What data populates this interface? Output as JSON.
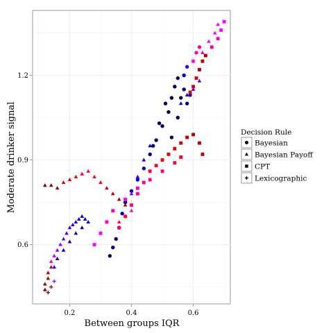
{
  "chart_data": {
    "type": "scatter",
    "title": "",
    "xlabel": "Between groups IQR",
    "ylabel": "Moderate drinker signal",
    "xlim": [
      0.08,
      0.72
    ],
    "ylim": [
      0.39,
      1.43
    ],
    "x_ticks": [
      0.2,
      0.4,
      0.6
    ],
    "x_tick_labels": [
      "0.2",
      "0.4",
      "0.6"
    ],
    "y_ticks": [
      0.6,
      0.9,
      1.2
    ],
    "y_tick_labels": [
      "0.6",
      "0.9",
      "1.2"
    ],
    "grid": true,
    "legend": {
      "title": "Decision Rule",
      "position": "right",
      "entries": [
        {
          "label": "Bayesian",
          "shape": "circle"
        },
        {
          "label": "Bayesian Payoff",
          "shape": "triangle"
        },
        {
          "label": "CPT",
          "shape": "square"
        },
        {
          "label": "Lexicographic",
          "shape": "plus"
        }
      ]
    },
    "color_scale": [
      "#000033",
      "#0000ff",
      "#ff00ff",
      "#ff0000",
      "#550000"
    ],
    "series": [
      {
        "name": "Bayesian",
        "shape": "circle",
        "points": [
          [
            0.33,
            0.56,
            0.05
          ],
          [
            0.34,
            0.59,
            0.1
          ],
          [
            0.35,
            0.62,
            0.08
          ],
          [
            0.36,
            0.66,
            0.12
          ],
          [
            0.37,
            0.71,
            0.15
          ],
          [
            0.38,
            0.75,
            0.18
          ],
          [
            0.4,
            0.79,
            0.2
          ],
          [
            0.42,
            0.83,
            0.22
          ],
          [
            0.44,
            0.87,
            0.18
          ],
          [
            0.46,
            0.92,
            0.1
          ],
          [
            0.48,
            0.97,
            0.08
          ],
          [
            0.5,
            1.02,
            0.06
          ],
          [
            0.52,
            1.07,
            0.05
          ],
          [
            0.53,
            1.12,
            0.04
          ],
          [
            0.54,
            1.16,
            0.05
          ],
          [
            0.55,
            1.19,
            0.06
          ],
          [
            0.56,
            1.12,
            0.08
          ],
          [
            0.57,
            1.15,
            0.1
          ],
          [
            0.55,
            1.05,
            0.06
          ],
          [
            0.53,
            0.98,
            0.05
          ],
          [
            0.58,
            1.1,
            0.12
          ],
          [
            0.59,
            1.13,
            0.15
          ],
          [
            0.57,
            1.2,
            0.25
          ],
          [
            0.58,
            1.23,
            0.3
          ],
          [
            0.6,
            1.25,
            0.5
          ],
          [
            0.61,
            1.28,
            0.55
          ],
          [
            0.62,
            1.3,
            0.6
          ],
          [
            0.49,
            1.03,
            0.07
          ],
          [
            0.51,
            1.1,
            0.05
          ],
          [
            0.47,
            0.95,
            0.09
          ]
        ]
      },
      {
        "name": "Bayesian Payoff",
        "shape": "triangle",
        "points": [
          [
            0.12,
            0.44,
            0.92
          ],
          [
            0.12,
            0.46,
            0.9
          ],
          [
            0.13,
            0.48,
            0.88
          ],
          [
            0.13,
            0.5,
            0.85
          ],
          [
            0.14,
            0.52,
            0.8
          ],
          [
            0.14,
            0.54,
            0.6
          ],
          [
            0.15,
            0.56,
            0.45
          ],
          [
            0.16,
            0.58,
            0.4
          ],
          [
            0.17,
            0.6,
            0.38
          ],
          [
            0.18,
            0.62,
            0.35
          ],
          [
            0.19,
            0.64,
            0.32
          ],
          [
            0.2,
            0.66,
            0.3
          ],
          [
            0.21,
            0.67,
            0.28
          ],
          [
            0.22,
            0.68,
            0.26
          ],
          [
            0.23,
            0.69,
            0.24
          ],
          [
            0.24,
            0.7,
            0.22
          ],
          [
            0.25,
            0.69,
            0.2
          ],
          [
            0.26,
            0.68,
            0.18
          ],
          [
            0.15,
            0.52,
            0.3
          ],
          [
            0.16,
            0.55,
            0.25
          ],
          [
            0.18,
            0.58,
            0.2
          ],
          [
            0.2,
            0.61,
            0.18
          ],
          [
            0.22,
            0.64,
            0.15
          ],
          [
            0.24,
            0.66,
            0.12
          ],
          [
            0.12,
            0.81,
            0.95
          ],
          [
            0.14,
            0.81,
            0.92
          ],
          [
            0.16,
            0.8,
            0.88
          ],
          [
            0.18,
            0.82,
            0.82
          ],
          [
            0.2,
            0.83,
            0.78
          ],
          [
            0.22,
            0.84,
            0.75
          ],
          [
            0.24,
            0.85,
            0.72
          ],
          [
            0.26,
            0.86,
            0.7
          ],
          [
            0.28,
            0.84,
            0.72
          ],
          [
            0.3,
            0.82,
            0.76
          ],
          [
            0.32,
            0.8,
            0.8
          ],
          [
            0.34,
            0.78,
            0.85
          ],
          [
            0.36,
            0.76,
            0.88
          ],
          [
            0.38,
            0.74,
            0.9
          ],
          [
            0.4,
            0.78,
            0.35
          ],
          [
            0.42,
            0.84,
            0.3
          ],
          [
            0.44,
            0.9,
            0.25
          ],
          [
            0.46,
            0.95,
            0.2
          ],
          [
            0.4,
            0.72,
            0.55
          ],
          [
            0.42,
            0.78,
            0.5
          ],
          [
            0.38,
            0.7,
            0.6
          ],
          [
            0.36,
            0.68,
            0.65
          ],
          [
            0.56,
            1.1,
            0.25
          ],
          [
            0.58,
            1.13,
            0.28
          ],
          [
            0.6,
            1.15,
            0.3
          ],
          [
            0.62,
            1.18,
            0.32
          ],
          [
            0.63,
            1.28,
            0.58
          ],
          [
            0.65,
            1.32,
            0.52
          ],
          [
            0.67,
            1.35,
            0.5
          ],
          [
            0.68,
            1.38,
            0.48
          ]
        ]
      },
      {
        "name": "CPT",
        "shape": "square",
        "points": [
          [
            0.28,
            0.6,
            0.5
          ],
          [
            0.3,
            0.64,
            0.52
          ],
          [
            0.32,
            0.68,
            0.55
          ],
          [
            0.34,
            0.72,
            0.58
          ],
          [
            0.36,
            0.66,
            0.65
          ],
          [
            0.38,
            0.7,
            0.68
          ],
          [
            0.4,
            0.74,
            0.62
          ],
          [
            0.42,
            0.78,
            0.58
          ],
          [
            0.44,
            0.82,
            0.62
          ],
          [
            0.46,
            0.86,
            0.66
          ],
          [
            0.48,
            0.88,
            0.7
          ],
          [
            0.5,
            0.9,
            0.74
          ],
          [
            0.52,
            0.92,
            0.76
          ],
          [
            0.54,
            0.94,
            0.78
          ],
          [
            0.56,
            0.96,
            0.8
          ],
          [
            0.58,
            0.98,
            0.82
          ],
          [
            0.6,
            0.99,
            0.85
          ],
          [
            0.62,
            0.96,
            0.84
          ],
          [
            0.63,
            0.92,
            0.83
          ],
          [
            0.56,
            0.91,
            0.72
          ],
          [
            0.54,
            0.89,
            0.7
          ],
          [
            0.5,
            0.86,
            0.65
          ],
          [
            0.46,
            0.83,
            0.6
          ],
          [
            0.42,
            0.8,
            0.56
          ],
          [
            0.38,
            0.76,
            0.52
          ],
          [
            0.59,
            1.14,
            0.78
          ],
          [
            0.6,
            1.16,
            0.8
          ],
          [
            0.61,
            1.19,
            0.82
          ],
          [
            0.62,
            1.22,
            0.84
          ],
          [
            0.63,
            1.25,
            0.86
          ],
          [
            0.64,
            1.27,
            0.88
          ],
          [
            0.66,
            1.3,
            0.6
          ],
          [
            0.68,
            1.33,
            0.55
          ],
          [
            0.69,
            1.36,
            0.52
          ],
          [
            0.7,
            1.39,
            0.5
          ]
        ]
      },
      {
        "name": "Lexicographic",
        "shape": "plus",
        "points": [
          [
            0.13,
            0.43,
            0.95
          ],
          [
            0.14,
            0.45,
            0.9
          ],
          [
            0.15,
            0.47,
            0.4
          ]
        ]
      }
    ]
  }
}
